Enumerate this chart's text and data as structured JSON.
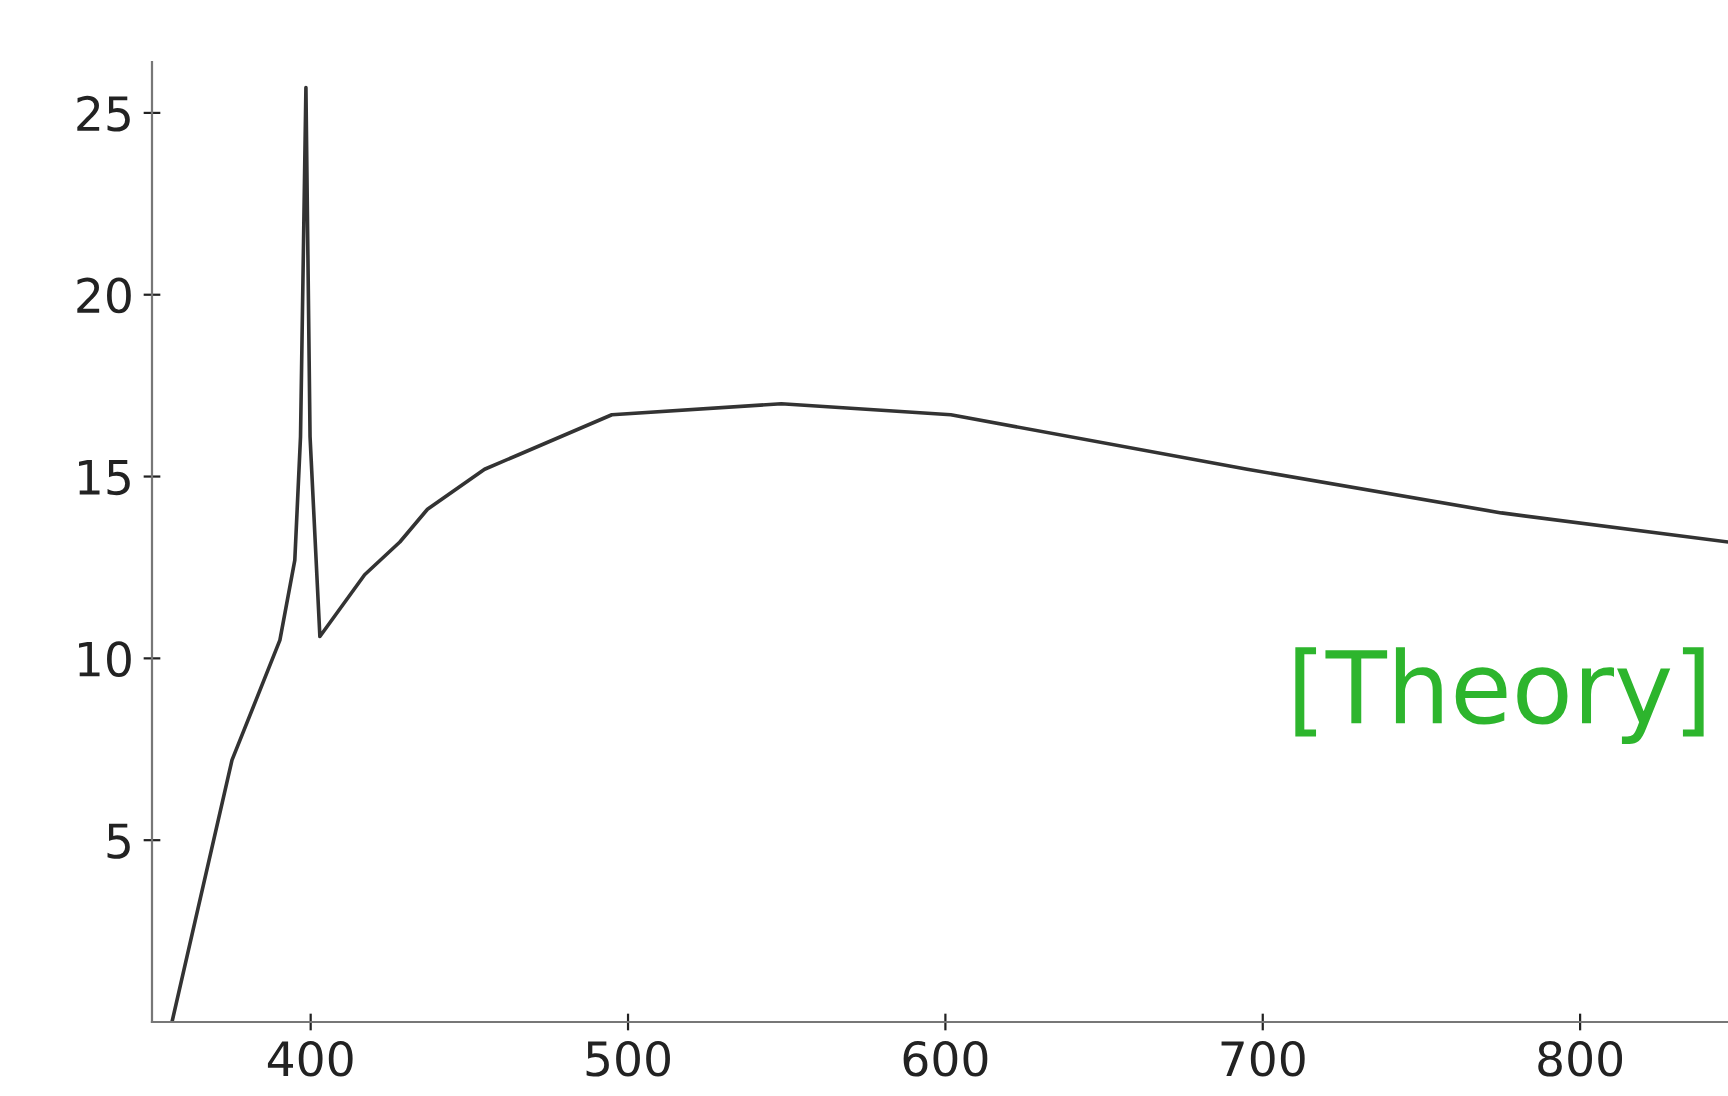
{
  "chart_data": {
    "type": "line",
    "x": [
      356.3,
      375.2,
      390.3,
      395,
      396.8,
      398.5,
      399.8,
      402.9,
      417,
      428.1,
      436.8,
      454.8,
      465.5,
      494.9,
      548.3,
      601.7,
      695.1,
      775.2,
      846.6
    ],
    "series": [
      {
        "color": "#333333",
        "values": [
          0,
          7.2,
          10.5,
          12.7,
          16.1,
          25.7,
          16.1,
          10.6,
          12.3,
          13.2,
          14.1,
          15.2,
          15.6,
          16.7,
          17.0,
          16.7,
          15.2,
          14.0,
          13.2
        ]
      }
    ],
    "xlim": [
      350,
      846.6
    ],
    "ylim": [
      0,
      26.4
    ],
    "xticks": [
      400,
      500,
      600,
      700,
      800
    ],
    "yticks": [
      5,
      10,
      15,
      20,
      25
    ],
    "grid": false,
    "legend": false,
    "marker": "none",
    "line_style": "solid",
    "annotations": [
      "[Theory]"
    ]
  }
}
